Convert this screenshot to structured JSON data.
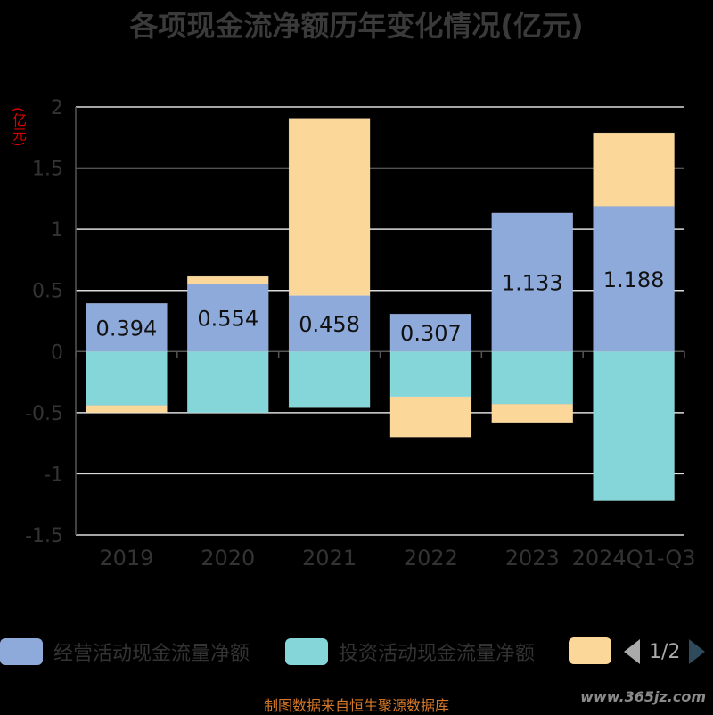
{
  "title": "各项现金流净额历年变化情况(亿元)",
  "unit_label": "(亿元)",
  "chart_data": {
    "type": "bar",
    "stacked": true,
    "categories": [
      "2019",
      "2020",
      "2021",
      "2022",
      "2023",
      "2024Q1-Q3"
    ],
    "series": [
      {
        "name": "经营活动现金流量净额",
        "color": "#8eaadb",
        "values": [
          0.394,
          0.554,
          0.458,
          0.307,
          1.133,
          1.188
        ]
      },
      {
        "name": "投资活动现金流量净额",
        "color": "#84d6d8",
        "values": [
          -0.44,
          -0.5,
          -0.46,
          -0.37,
          -0.43,
          -1.22
        ]
      },
      {
        "name": "",
        "color": "#fbd79a",
        "values": [
          -0.06,
          0.06,
          1.45,
          -0.33,
          -0.15,
          0.6
        ]
      }
    ],
    "data_labels": [
      "0.394",
      "0.554",
      "0.458",
      "0.307",
      "1.133",
      "1.188"
    ],
    "y_ticks": [
      "2",
      "1.5",
      "1",
      "0.5",
      "0",
      "-0.5",
      "-1",
      "-1.5"
    ],
    "ylim": [
      -1.5,
      2
    ],
    "grid": true,
    "legend_position": "bottom"
  },
  "legend": {
    "items": [
      {
        "label": "经营活动现金流量净额",
        "color": "#8eaadb"
      },
      {
        "label": "投资活动现金流量净额",
        "color": "#84d6d8"
      },
      {
        "label": "",
        "color": "#fbd79a"
      }
    ],
    "page_text": "1/2"
  },
  "source": "制图数据来自恒生聚源数据库",
  "watermark": "www.365jz.com"
}
